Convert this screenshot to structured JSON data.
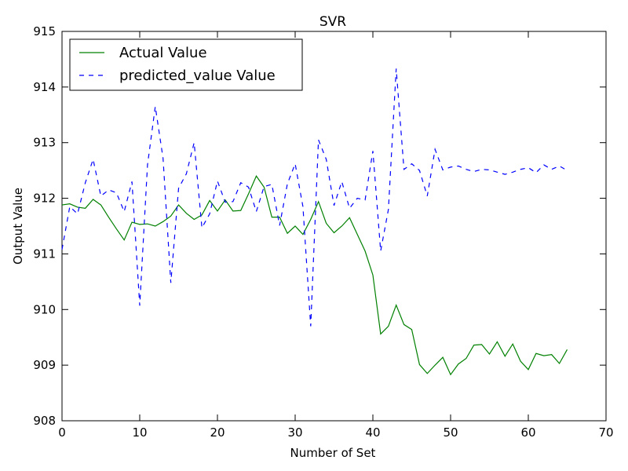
{
  "chart_data": {
    "type": "line",
    "title": "SVR",
    "xlabel": "Number of Set",
    "ylabel": "Output Value",
    "xlim": [
      0,
      70
    ],
    "ylim": [
      908,
      915
    ],
    "xticks": [
      0,
      10,
      20,
      30,
      40,
      50,
      60,
      70
    ],
    "yticks": [
      908,
      909,
      910,
      911,
      912,
      913,
      914,
      915
    ],
    "grid": false,
    "legend_position": "upper-left",
    "x": [
      0,
      1,
      2,
      3,
      4,
      5,
      6,
      7,
      8,
      9,
      10,
      11,
      12,
      13,
      14,
      15,
      16,
      17,
      18,
      19,
      20,
      21,
      22,
      23,
      24,
      25,
      26,
      27,
      28,
      29,
      30,
      31,
      32,
      33,
      34,
      35,
      36,
      37,
      38,
      39,
      40,
      41,
      42,
      43,
      44,
      45,
      46,
      47,
      48,
      49,
      50,
      51,
      52,
      53,
      54,
      55,
      56,
      57,
      58,
      59,
      60,
      61,
      62,
      63,
      64,
      65
    ],
    "series": [
      {
        "name": "Actual Value",
        "color": "#008000",
        "style": "solid",
        "values": [
          911.88,
          911.9,
          911.84,
          911.82,
          911.98,
          911.88,
          911.66,
          911.45,
          911.25,
          911.57,
          911.53,
          911.54,
          911.5,
          911.58,
          911.68,
          911.88,
          911.73,
          911.62,
          911.7,
          911.96,
          911.77,
          911.97,
          911.77,
          911.78,
          912.08,
          912.4,
          912.2,
          911.66,
          911.66,
          911.37,
          911.5,
          911.35,
          911.62,
          911.94,
          911.55,
          911.38,
          911.5,
          911.65,
          911.35,
          911.05,
          910.62,
          909.56,
          909.7,
          910.08,
          909.73,
          909.64,
          909.01,
          908.85,
          909.0,
          909.14,
          908.83,
          909.02,
          909.12,
          909.36,
          909.37,
          909.2,
          909.42,
          909.16,
          909.38,
          909.07,
          908.92,
          909.21,
          909.17,
          909.19,
          909.03,
          909.28
        ]
      },
      {
        "name": "predicted_value Value",
        "color": "#0000ff",
        "style": "dashed",
        "values": [
          911.08,
          911.85,
          911.72,
          912.28,
          912.7,
          912.04,
          912.15,
          912.1,
          911.76,
          912.3,
          910.07,
          912.6,
          913.65,
          912.72,
          910.48,
          912.18,
          912.44,
          913.0,
          911.47,
          911.72,
          912.31,
          911.93,
          911.94,
          912.28,
          912.2,
          911.76,
          912.21,
          912.25,
          911.51,
          912.26,
          912.62,
          911.85,
          909.7,
          913.05,
          912.7,
          911.87,
          912.3,
          911.82,
          912.0,
          911.97,
          912.85,
          911.05,
          911.8,
          914.33,
          912.52,
          912.62,
          912.5,
          912.04,
          912.88,
          912.51,
          912.56,
          912.58,
          912.52,
          912.48,
          912.52,
          912.51,
          912.47,
          912.43,
          912.47,
          912.52,
          912.55,
          912.46,
          912.6,
          912.52,
          912.58,
          912.5
        ]
      }
    ]
  }
}
